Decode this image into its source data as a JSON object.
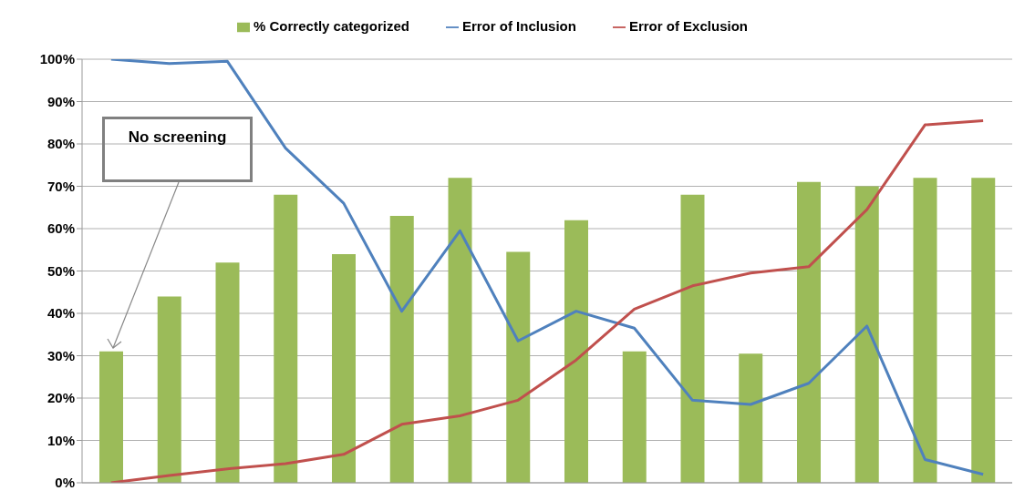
{
  "chart_data": {
    "type": "bar",
    "categories": [
      null,
      null,
      null,
      null,
      null,
      null,
      null,
      null,
      null,
      null,
      null,
      null,
      null,
      null,
      null,
      null
    ],
    "series": [
      {
        "name": "% Correctly categorized",
        "color": "#9bbb59",
        "values": [
          31,
          44,
          52,
          68,
          54,
          63,
          72,
          54.5,
          62,
          31,
          68,
          30.5,
          71,
          70,
          72,
          72
        ]
      },
      {
        "name": "Error of Inclusion",
        "type": "line",
        "color": "#4f81bd",
        "values": [
          100,
          99,
          99.5,
          79,
          66,
          40.5,
          59.5,
          33.5,
          40.5,
          36.5,
          19.5,
          18.5,
          23.5,
          37,
          5.5,
          2
        ]
      },
      {
        "name": "Error of Exclusion",
        "type": "line",
        "color": "#c0504d",
        "values": [
          0,
          1.7,
          3.3,
          4.5,
          6.7,
          13.8,
          15.8,
          19.5,
          29,
          41,
          46.5,
          49.5,
          51,
          64.5,
          84.5,
          85.5
        ]
      }
    ],
    "ylim": [
      0,
      100
    ],
    "yticks": [
      {
        "value": 0,
        "label": "0%"
      },
      {
        "value": 10,
        "label": "10%"
      },
      {
        "value": 20,
        "label": "20%"
      },
      {
        "value": 30,
        "label": "30%"
      },
      {
        "value": 40,
        "label": "40%"
      },
      {
        "value": 50,
        "label": "50%"
      },
      {
        "value": 60,
        "label": "60%"
      },
      {
        "value": 70,
        "label": "70%"
      },
      {
        "value": 80,
        "label": "80%"
      },
      {
        "value": 90,
        "label": "90%"
      },
      {
        "value": 100,
        "label": "100%"
      }
    ],
    "grid": "y",
    "legend": "top",
    "marker": "none",
    "annotations": [
      "No screening"
    ]
  }
}
